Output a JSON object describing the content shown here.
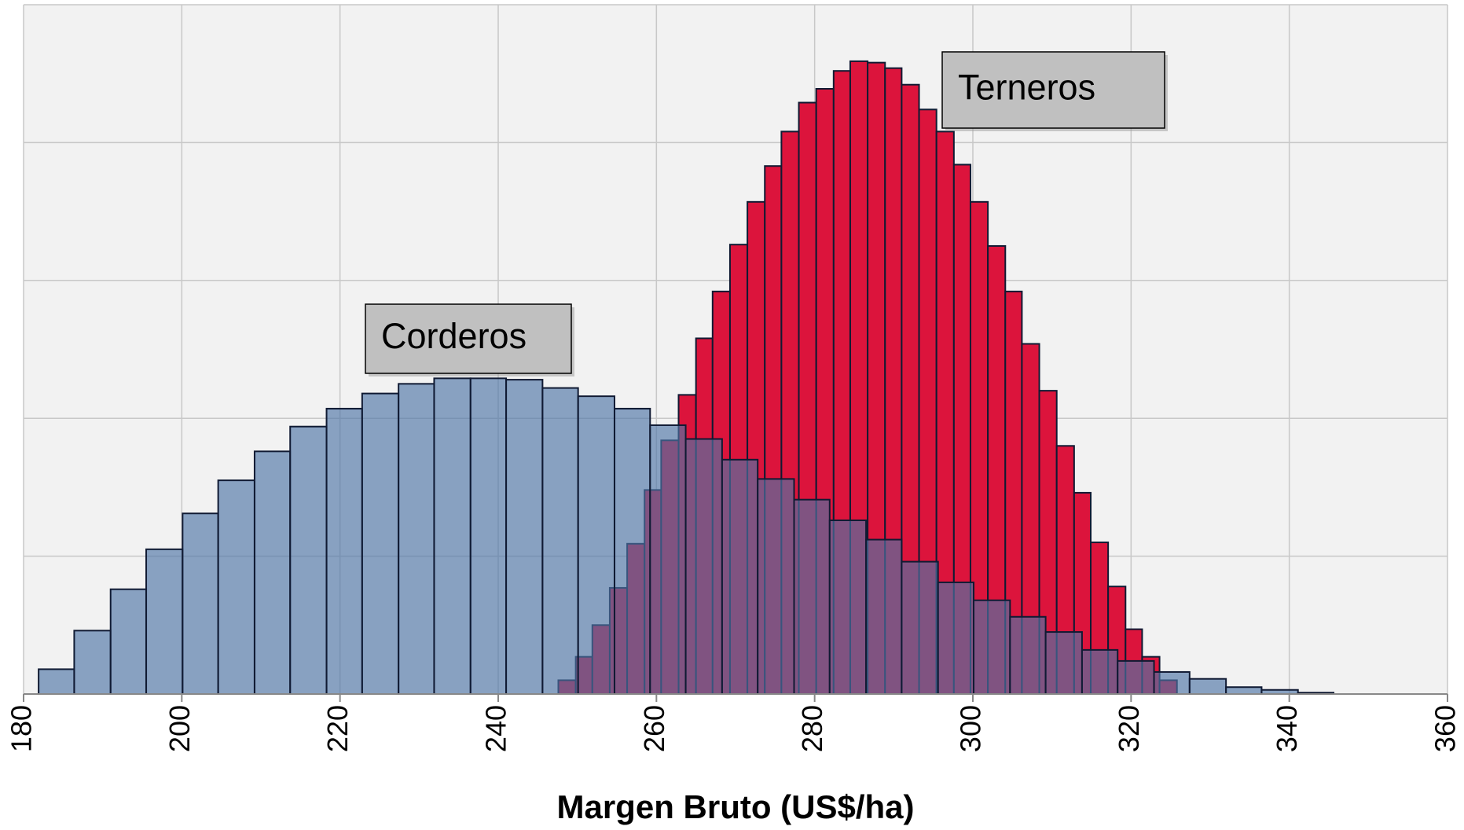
{
  "chart_data": {
    "type": "histogram",
    "xlabel": "Margen Bruto (US$/ha)",
    "xlim": [
      180,
      360
    ],
    "xticks": [
      180,
      200,
      220,
      240,
      260,
      280,
      300,
      320,
      340,
      360
    ],
    "ylim": [
      0,
      5
    ],
    "yticks": [
      0,
      1,
      2,
      3,
      4,
      5
    ],
    "grid": true,
    "series": [
      {
        "name": "Terneros",
        "color": "#dc143c",
        "bins": [
          247.6,
          249.8,
          251.9,
          254.1,
          256.3,
          258.5,
          260.6,
          262.8,
          265.0,
          267.1,
          269.3,
          271.5,
          273.7,
          275.8,
          278.0,
          280.2,
          282.4,
          284.5,
          286.7,
          288.9,
          291.0,
          293.2,
          295.4,
          297.6,
          299.7,
          301.9,
          304.1,
          306.2,
          308.4,
          310.6,
          312.8,
          314.9,
          317.1,
          319.3,
          321.4,
          323.6,
          325.8
        ],
        "values": [
          0.1,
          0.27,
          0.5,
          0.77,
          1.09,
          1.48,
          1.84,
          2.17,
          2.58,
          2.92,
          3.26,
          3.57,
          3.83,
          4.08,
          4.29,
          4.39,
          4.52,
          4.59,
          4.58,
          4.54,
          4.42,
          4.24,
          4.08,
          3.84,
          3.57,
          3.25,
          2.92,
          2.54,
          2.2,
          1.8,
          1.46,
          1.1,
          0.78,
          0.47,
          0.27,
          0.1
        ]
      },
      {
        "name": "Corderos",
        "color": "#4f74a6",
        "bins": [
          181.9,
          186.4,
          191.0,
          195.5,
          200.1,
          204.6,
          209.2,
          213.7,
          218.3,
          222.8,
          227.4,
          231.9,
          236.5,
          241.0,
          245.6,
          250.1,
          254.7,
          259.2,
          263.7,
          268.3,
          272.8,
          277.4,
          281.9,
          286.5,
          291.0,
          295.6,
          300.1,
          304.7,
          309.2,
          313.8,
          318.3,
          322.9,
          327.4,
          332.0,
          336.5,
          341.1,
          345.6
        ],
        "values": [
          0.18,
          0.46,
          0.76,
          1.05,
          1.31,
          1.55,
          1.76,
          1.94,
          2.07,
          2.18,
          2.25,
          2.29,
          2.29,
          2.28,
          2.22,
          2.16,
          2.07,
          1.95,
          1.85,
          1.7,
          1.56,
          1.41,
          1.26,
          1.12,
          0.96,
          0.81,
          0.68,
          0.56,
          0.45,
          0.32,
          0.24,
          0.16,
          0.11,
          0.05,
          0.03,
          0.01
        ]
      }
    ]
  }
}
